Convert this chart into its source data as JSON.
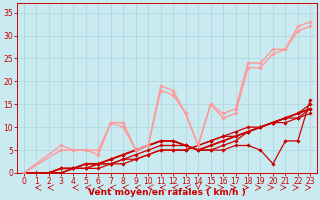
{
  "background_color": "#c8eaf0",
  "grid_color": "#b0d4dc",
  "xlabel": "Vent moyen/en rafales ( km/h )",
  "ylabel_ticks": [
    0,
    5,
    10,
    15,
    20,
    25,
    30,
    35
  ],
  "xlim": [
    -0.5,
    23.5
  ],
  "ylim": [
    0,
    37
  ],
  "x_ticks": [
    0,
    1,
    2,
    3,
    4,
    5,
    6,
    7,
    8,
    9,
    10,
    11,
    12,
    13,
    14,
    15,
    16,
    17,
    18,
    19,
    20,
    21,
    22,
    23
  ],
  "series": [
    {
      "x": [
        0,
        1,
        2,
        3,
        4,
        5,
        6,
        7,
        8,
        9,
        10,
        11,
        12,
        13,
        14,
        15,
        16,
        17,
        18,
        19,
        20,
        21,
        22,
        23
      ],
      "y": [
        0,
        0,
        0,
        0,
        1,
        1,
        1,
        2,
        2,
        3,
        4,
        5,
        5,
        5,
        6,
        7,
        8,
        8,
        9,
        10,
        11,
        12,
        13,
        15
      ],
      "color": "#cc0000",
      "lw": 0.9,
      "marker": "D",
      "ms": 1.8
    },
    {
      "x": [
        0,
        1,
        2,
        3,
        4,
        5,
        6,
        7,
        8,
        9,
        10,
        11,
        12,
        13,
        14,
        15,
        16,
        17,
        18,
        19,
        20,
        21,
        22,
        23
      ],
      "y": [
        0,
        0,
        0,
        0,
        1,
        1,
        2,
        2,
        3,
        3,
        4,
        5,
        5,
        5,
        6,
        7,
        8,
        9,
        10,
        10,
        11,
        12,
        12,
        14
      ],
      "color": "#cc0000",
      "lw": 0.9,
      "marker": "D",
      "ms": 1.8
    },
    {
      "x": [
        0,
        1,
        2,
        3,
        4,
        5,
        6,
        7,
        8,
        9,
        10,
        11,
        12,
        13,
        14,
        15,
        16,
        17,
        18,
        19,
        20,
        21,
        22,
        23
      ],
      "y": [
        0,
        0,
        0,
        0,
        1,
        1,
        2,
        2,
        3,
        4,
        5,
        6,
        6,
        6,
        5,
        5,
        6,
        7,
        9,
        10,
        11,
        11,
        12,
        13
      ],
      "color": "#cc0000",
      "lw": 0.9,
      "marker": "D",
      "ms": 1.8
    },
    {
      "x": [
        0,
        1,
        2,
        3,
        4,
        5,
        6,
        7,
        8,
        9,
        10,
        11,
        12,
        13,
        14,
        15,
        16,
        17,
        18,
        19,
        20,
        21,
        22,
        23
      ],
      "y": [
        0,
        0,
        0,
        1,
        1,
        2,
        2,
        3,
        4,
        5,
        6,
        7,
        7,
        6,
        5,
        5,
        5,
        6,
        6,
        5,
        2,
        7,
        7,
        16
      ],
      "color": "#cc0000",
      "lw": 0.9,
      "marker": "D",
      "ms": 1.8
    },
    {
      "x": [
        0,
        1,
        2,
        3,
        4,
        5,
        6,
        7,
        8,
        9,
        10,
        11,
        12,
        13,
        14,
        15,
        16,
        17,
        18,
        19,
        20,
        21,
        22,
        23
      ],
      "y": [
        0,
        0,
        0,
        1,
        1,
        2,
        2,
        3,
        4,
        5,
        6,
        7,
        7,
        6,
        5,
        6,
        7,
        8,
        9,
        10,
        11,
        12,
        13,
        14
      ],
      "color": "#cc0000",
      "lw": 1.3,
      "marker": "D",
      "ms": 1.8
    },
    {
      "x": [
        0,
        3,
        4,
        5,
        6,
        7,
        8,
        9,
        10,
        11,
        12,
        13,
        14,
        15,
        16,
        17,
        18,
        19,
        20,
        21,
        22,
        23
      ],
      "y": [
        0,
        6,
        5,
        5,
        5,
        11,
        11,
        5,
        6,
        19,
        18,
        13,
        6,
        15,
        13,
        14,
        24,
        24,
        27,
        27,
        32,
        33
      ],
      "color": "#ff9999",
      "lw": 1.0,
      "marker": "D",
      "ms": 1.8
    },
    {
      "x": [
        0,
        3,
        4,
        5,
        6,
        7,
        8,
        9,
        10,
        11,
        12,
        13,
        14,
        15,
        16,
        17,
        18,
        19,
        20,
        21,
        22,
        23
      ],
      "y": [
        0,
        5,
        5,
        5,
        4,
        11,
        10,
        5,
        6,
        18,
        17,
        13,
        6,
        15,
        12,
        13,
        23,
        23,
        26,
        27,
        31,
        32
      ],
      "color": "#ff9999",
      "lw": 1.0,
      "marker": "D",
      "ms": 1.8
    }
  ],
  "tick_fontsize": 5.5,
  "axis_fontsize": 6.5
}
